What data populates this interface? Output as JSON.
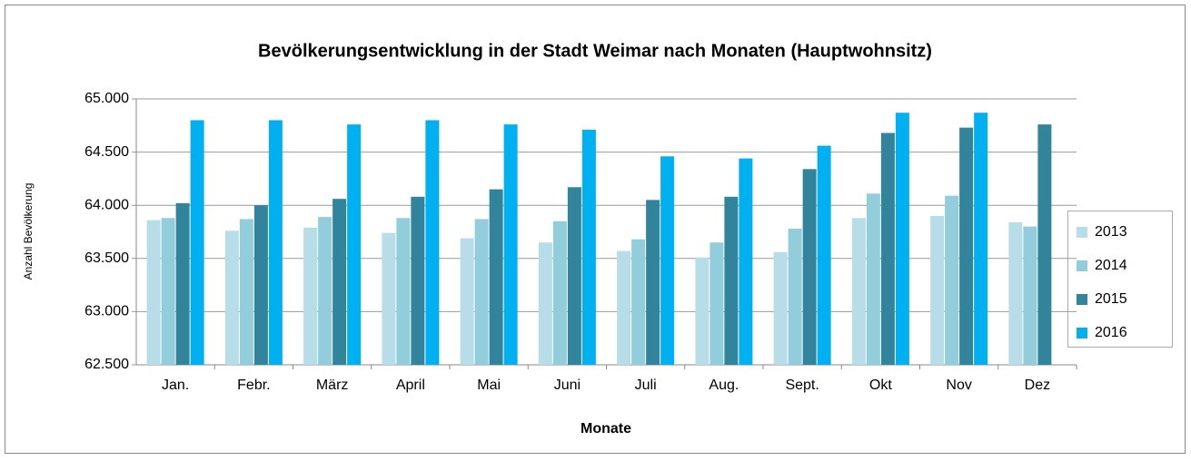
{
  "chart_data": {
    "type": "bar",
    "title": "Bevölkerungsentwicklung in der Stadt Weimar nach Monaten (Hauptwohnsitz)",
    "x_label": "Monate",
    "y_label": "Anzahl Bevölkerung",
    "categories": [
      "Jan.",
      "Febr.",
      "März",
      "April",
      "Mai",
      "Juni",
      "Juli",
      "Aug.",
      "Sept.",
      "Okt",
      "Nov",
      "Dez"
    ],
    "series": [
      {
        "name": "2013",
        "color": "#b7dde8",
        "values": [
          63860,
          63760,
          63790,
          63740,
          63690,
          63650,
          63570,
          63510,
          63560,
          63880,
          63900,
          63840
        ]
      },
      {
        "name": "2014",
        "color": "#92cddc",
        "values": [
          63880,
          63870,
          63890,
          63880,
          63870,
          63850,
          63680,
          63650,
          63780,
          64110,
          64090,
          63800
        ]
      },
      {
        "name": "2015",
        "color": "#31849b",
        "values": [
          64020,
          64000,
          64060,
          64080,
          64150,
          64170,
          64050,
          64080,
          64340,
          64680,
          64730,
          64760
        ]
      },
      {
        "name": "2016",
        "color": "#00b0f0",
        "values": [
          64800,
          64800,
          64760,
          64800,
          64760,
          64710,
          64460,
          64440,
          64560,
          64870,
          64870,
          null
        ]
      }
    ],
    "ylim": [
      62500,
      65000
    ],
    "yticks": [
      {
        "value": 62500,
        "label": "62.500"
      },
      {
        "value": 63000,
        "label": "63.000"
      },
      {
        "value": 63500,
        "label": "63.500"
      },
      {
        "value": 64000,
        "label": "64.000"
      },
      {
        "value": 64500,
        "label": "64.500"
      },
      {
        "value": 65000,
        "label": "65.000"
      }
    ],
    "grid": true,
    "legend": "right"
  }
}
